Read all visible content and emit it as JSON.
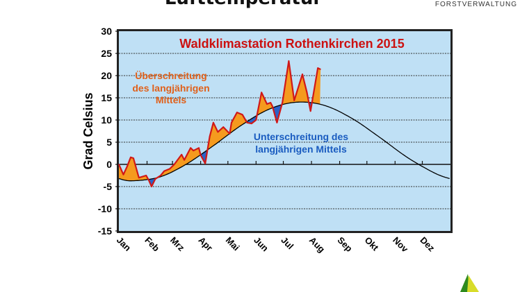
{
  "header": {
    "title": "Lufttemperatur",
    "brand": "FORSTVERWALTUNG"
  },
  "chart_data": {
    "type": "line",
    "title": "Waldklimastation Rothenkirchen 2015",
    "ylabel": "Grad Celsius",
    "xlabel": "",
    "ylim": [
      -15,
      30
    ],
    "yticks": [
      -15,
      -10,
      -5,
      0,
      5,
      10,
      15,
      20,
      25,
      30
    ],
    "grid": true,
    "months": [
      "Jan",
      "Feb",
      "Mrz",
      "Apr",
      "Mai",
      "Jun",
      "Jul",
      "Aug",
      "Sep",
      "Okt",
      "Nov",
      "Dez"
    ],
    "annotations": {
      "above": [
        "Überschreitung",
        "des langjährigen",
        "Mittels"
      ],
      "below": [
        "Unterschreitung des",
        "langjährigen Mittels"
      ]
    },
    "colors": {
      "background": "#bfe0f5",
      "actual_line": "#d01818",
      "above_fill": "#f59a1e",
      "below_fill": "#2a62c8",
      "mean_line": "#000000",
      "title": "#cc1111",
      "above_text": "#e0601a",
      "below_text": "#1a5cc0"
    },
    "series": [
      {
        "key": "actual",
        "points": [
          [
            "2015-01-01",
            0
          ],
          [
            "2015-01-06",
            -2.3
          ],
          [
            "2015-01-10",
            -0.5
          ],
          [
            "2015-01-14",
            1.6
          ],
          [
            "2015-01-17",
            1.4
          ],
          [
            "2015-01-23",
            -3
          ],
          [
            "2015-01-31",
            -2.5
          ],
          [
            "2015-02-03",
            -3.6
          ],
          [
            "2015-02-06",
            -5
          ],
          [
            "2015-02-10",
            -3.3
          ],
          [
            "2015-02-16",
            -2.5
          ],
          [
            "2015-02-20",
            -1.5
          ],
          [
            "2015-02-26",
            -1
          ],
          [
            "2015-03-03",
            0
          ],
          [
            "2015-03-11",
            2.2
          ],
          [
            "2015-03-14",
            1
          ],
          [
            "2015-03-21",
            3.7
          ],
          [
            "2015-03-24",
            3.1
          ],
          [
            "2015-03-30",
            3.7
          ],
          [
            "2015-04-01",
            2.1
          ],
          [
            "2015-04-06",
            0.2
          ],
          [
            "2015-04-11",
            6.3
          ],
          [
            "2015-04-15",
            9.4
          ],
          [
            "2015-04-20",
            7.3
          ],
          [
            "2015-04-26",
            8.4
          ],
          [
            "2015-05-03",
            6.9
          ],
          [
            "2015-05-05",
            9.4
          ],
          [
            "2015-05-11",
            11.7
          ],
          [
            "2015-05-17",
            11.2
          ],
          [
            "2015-05-22",
            9.4
          ],
          [
            "2015-05-27",
            9.2
          ],
          [
            "2015-06-01",
            10
          ],
          [
            "2015-06-07",
            16.2
          ],
          [
            "2015-06-13",
            13.6
          ],
          [
            "2015-06-17",
            13.9
          ],
          [
            "2015-06-19",
            13.1
          ],
          [
            "2015-06-24",
            9.4
          ],
          [
            "2015-06-30",
            13.9
          ],
          [
            "2015-07-07",
            23.3
          ],
          [
            "2015-07-13",
            14.4
          ],
          [
            "2015-07-22",
            20.3
          ],
          [
            "2015-07-27",
            16.2
          ],
          [
            "2015-07-31",
            12
          ],
          [
            "2015-08-08",
            21.7
          ],
          [
            "2015-08-11",
            21.4
          ]
        ]
      },
      {
        "key": "mean",
        "points": [
          [
            "2015-01-01",
            -3.2
          ],
          [
            "2015-01-15",
            -3.7
          ],
          [
            "2015-02-14",
            -2.9
          ],
          [
            "2015-03-15",
            -0.1
          ],
          [
            "2015-04-15",
            4.2
          ],
          [
            "2015-05-15",
            8.7
          ],
          [
            "2015-06-15",
            12.4
          ],
          [
            "2015-07-15",
            14.0
          ],
          [
            "2015-08-15",
            13.3
          ],
          [
            "2015-09-15",
            10.3
          ],
          [
            "2015-10-15",
            6.1
          ],
          [
            "2015-11-15",
            1.5
          ],
          [
            "2015-12-15",
            -2.0
          ],
          [
            "2015-12-31",
            -3.2
          ]
        ]
      }
    ]
  }
}
